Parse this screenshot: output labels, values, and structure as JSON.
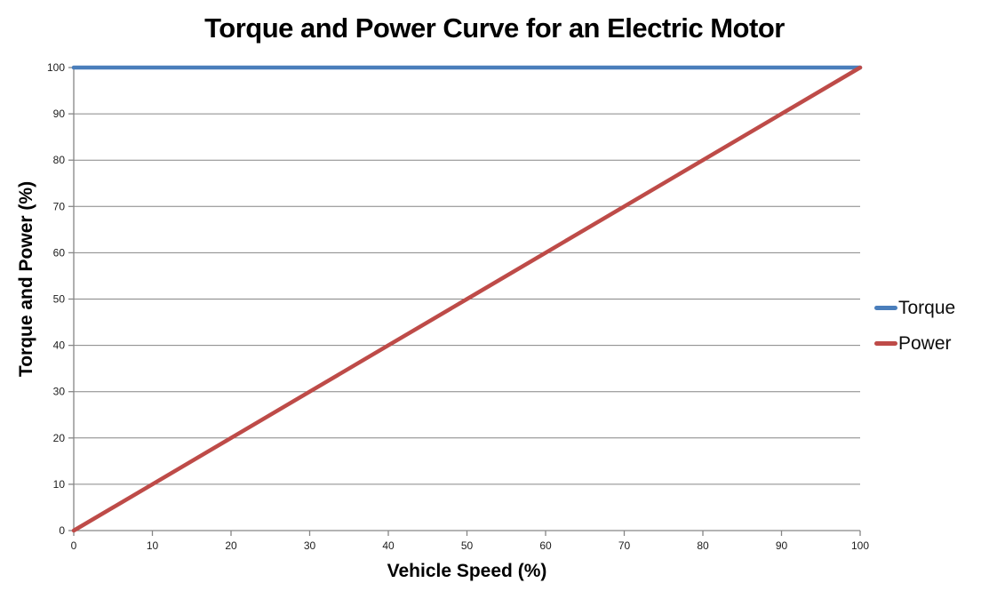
{
  "chart_data": {
    "type": "line",
    "title": "Torque and Power Curve for an Electric Motor",
    "xlabel": "Vehicle Speed (%)",
    "ylabel": "Torque and Power (%)",
    "x": [
      0,
      10,
      20,
      30,
      40,
      50,
      60,
      70,
      80,
      90,
      100
    ],
    "series": [
      {
        "name": "Torque",
        "color": "#4A7EBB",
        "values": [
          100,
          100,
          100,
          100,
          100,
          100,
          100,
          100,
          100,
          100,
          100
        ]
      },
      {
        "name": "Power",
        "color": "#BE4B48",
        "values": [
          0,
          10,
          20,
          30,
          40,
          50,
          60,
          70,
          80,
          90,
          100
        ]
      }
    ],
    "xlim": [
      0,
      100
    ],
    "ylim": [
      0,
      100
    ],
    "x_ticks": [
      0,
      10,
      20,
      30,
      40,
      50,
      60,
      70,
      80,
      90,
      100
    ],
    "y_ticks": [
      0,
      10,
      20,
      30,
      40,
      50,
      60,
      70,
      80,
      90,
      100
    ],
    "grid": "horizontal",
    "legend_position": "right",
    "colors": {
      "gridline": "#868686",
      "axis": "#868686",
      "tick_label": "#1c1c1c",
      "title_text": "#000000"
    }
  }
}
